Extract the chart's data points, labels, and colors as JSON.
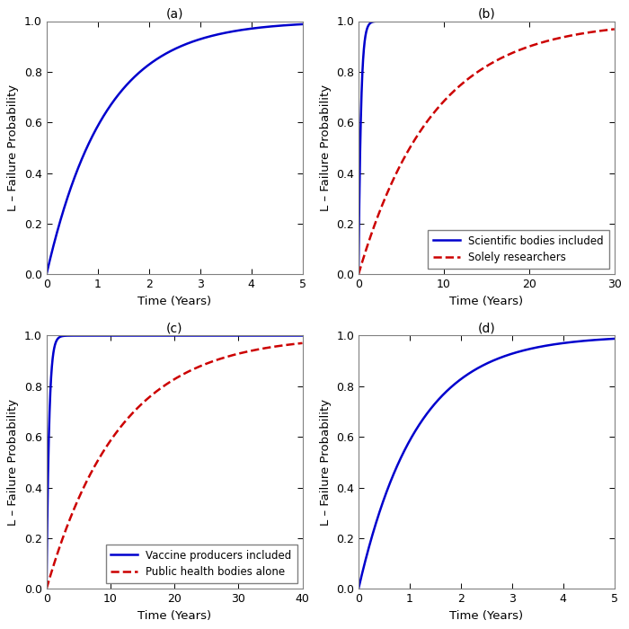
{
  "panels": [
    {
      "label": "(a)",
      "xlim": [
        0,
        5
      ],
      "xticks": [
        0,
        1,
        2,
        3,
        4,
        5
      ],
      "ylim": [
        0,
        1
      ],
      "yticks": [
        0,
        0.2,
        0.4,
        0.6,
        0.8,
        1.0
      ],
      "lines": [
        {
          "color": "#0000cd",
          "style": "-",
          "lw": 1.8,
          "lambda": 0.88,
          "label": null
        }
      ],
      "legend": false,
      "xlabel": "Time (Years)",
      "ylabel": "L – Failure Probability"
    },
    {
      "label": "(b)",
      "xlim": [
        0,
        30
      ],
      "xticks": [
        0,
        10,
        20,
        30
      ],
      "ylim": [
        0,
        1
      ],
      "yticks": [
        0,
        0.2,
        0.4,
        0.6,
        0.8,
        1.0
      ],
      "lines": [
        {
          "color": "#0000cd",
          "style": "-",
          "lw": 1.8,
          "lambda": 3.5,
          "label": "Scientific bodies included"
        },
        {
          "color": "#cc0000",
          "style": "--",
          "lw": 1.8,
          "lambda": 0.115,
          "label": "Solely researchers"
        }
      ],
      "legend": true,
      "legend_loc": "lower right",
      "xlabel": "Time (Years)",
      "ylabel": "L – Failure Probability"
    },
    {
      "label": "(c)",
      "xlim": [
        0,
        40
      ],
      "xticks": [
        0,
        10,
        20,
        30,
        40
      ],
      "ylim": [
        0,
        1
      ],
      "yticks": [
        0,
        0.2,
        0.4,
        0.6,
        0.8,
        1.0
      ],
      "lines": [
        {
          "color": "#0000cd",
          "style": "-",
          "lw": 1.8,
          "lambda": 2.5,
          "label": "Vaccine producers included"
        },
        {
          "color": "#cc0000",
          "style": "--",
          "lw": 1.8,
          "lambda": 0.088,
          "label": "Public health bodies alone"
        }
      ],
      "legend": true,
      "legend_loc": "lower right",
      "xlabel": "Time (Years)",
      "ylabel": "L – Failure Probability"
    },
    {
      "label": "(d)",
      "xlim": [
        0,
        5
      ],
      "xticks": [
        0,
        1,
        2,
        3,
        4,
        5
      ],
      "ylim": [
        0,
        1
      ],
      "yticks": [
        0,
        0.2,
        0.4,
        0.6,
        0.8,
        1.0
      ],
      "lines": [
        {
          "color": "#0000cd",
          "style": "-",
          "lw": 1.8,
          "lambda": 0.88,
          "label": null
        }
      ],
      "legend": false,
      "xlabel": "Time (Years)",
      "ylabel": "L – Failure Probability"
    }
  ],
  "figure_bg": "#ffffff",
  "axes_bg": "#ffffff",
  "title_fontsize": 10,
  "axis_label_fontsize": 9.5,
  "tick_fontsize": 9,
  "legend_fontsize": 8.5
}
